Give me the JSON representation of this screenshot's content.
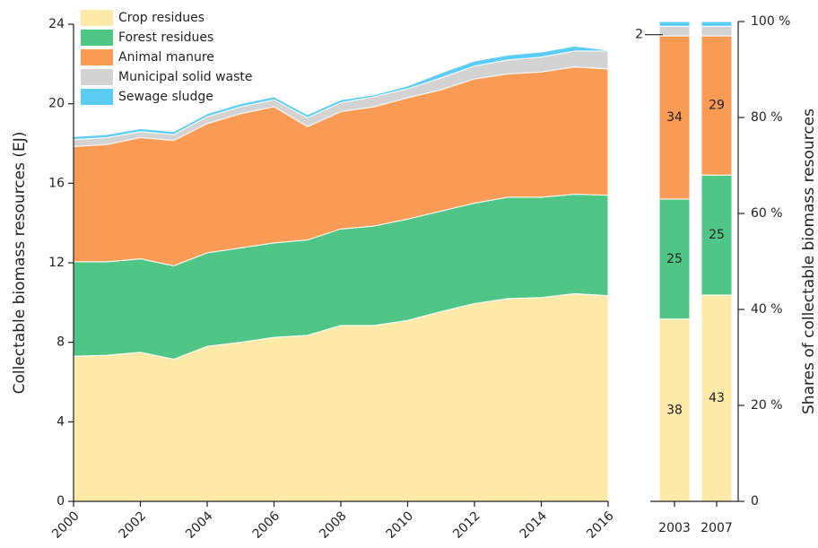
{
  "chart_data": [
    {
      "type": "area",
      "stacked": true,
      "y_label": "Collectable biomass resources (EJ)",
      "x": [
        2000,
        2001,
        2002,
        2003,
        2004,
        2005,
        2006,
        2007,
        2008,
        2009,
        2010,
        2011,
        2012,
        2013,
        2014,
        2015,
        2016
      ],
      "xlim": [
        2000,
        2016
      ],
      "xticks": [
        2000,
        2002,
        2004,
        2006,
        2008,
        2010,
        2012,
        2014,
        2016
      ],
      "ylim": [
        0,
        24
      ],
      "yticks": [
        0,
        4,
        8,
        12,
        16,
        20,
        24
      ],
      "legend": "upper left",
      "series": [
        {
          "name": "Crop residues",
          "color": "#fdeaa8",
          "values": [
            7.3,
            7.35,
            7.5,
            7.15,
            7.8,
            8.0,
            8.25,
            8.35,
            8.85,
            8.85,
            9.1,
            9.55,
            9.95,
            10.2,
            10.25,
            10.45,
            10.35
          ]
        },
        {
          "name": "Forest residues",
          "color": "#4fc685",
          "values": [
            4.75,
            4.7,
            4.7,
            4.7,
            4.7,
            4.75,
            4.75,
            4.8,
            4.85,
            5.0,
            5.1,
            5.05,
            5.05,
            5.1,
            5.05,
            5.0,
            5.05
          ]
        },
        {
          "name": "Animal manure",
          "color": "#f99b55",
          "values": [
            5.8,
            5.9,
            6.1,
            6.3,
            6.5,
            6.75,
            6.85,
            5.7,
            5.9,
            6.0,
            6.1,
            6.1,
            6.25,
            6.2,
            6.3,
            6.4,
            6.35
          ]
        },
        {
          "name": "Municipal solid waste",
          "color": "#d3d3d3",
          "values": [
            0.35,
            0.35,
            0.3,
            0.3,
            0.35,
            0.35,
            0.35,
            0.45,
            0.45,
            0.5,
            0.45,
            0.6,
            0.65,
            0.7,
            0.75,
            0.8,
            0.9
          ]
        },
        {
          "name": "Sewage sludge",
          "color": "#5bcdf5",
          "values": [
            0.15,
            0.15,
            0.15,
            0.15,
            0.15,
            0.15,
            0.15,
            0.15,
            0.15,
            0.1,
            0.15,
            0.25,
            0.25,
            0.25,
            0.25,
            0.25,
            0.05
          ]
        }
      ]
    },
    {
      "type": "bar",
      "stacked": true,
      "y_label": "Shares of collectable biomass resources",
      "categories": [
        "2003",
        "2007"
      ],
      "ylim": [
        0,
        100
      ],
      "yticks": [
        0,
        {
          "value": 20,
          "label": "20 %"
        },
        {
          "value": 40,
          "label": "40 %"
        },
        {
          "value": 60,
          "label": "60 %"
        },
        {
          "value": 80,
          "label": "80 %"
        },
        {
          "value": 100,
          "label": "100 %"
        }
      ],
      "series": [
        {
          "name": "Crop residues",
          "color": "#fdeaa8",
          "values": [
            38,
            43
          ],
          "value_labels": [
            "38",
            "43"
          ]
        },
        {
          "name": "Forest residues",
          "color": "#4fc685",
          "values": [
            25,
            25
          ],
          "value_labels": [
            "25",
            "25"
          ]
        },
        {
          "name": "Animal manure",
          "color": "#f99b55",
          "values": [
            34,
            29
          ],
          "value_labels": [
            "34",
            "29"
          ]
        },
        {
          "name": "Municipal solid waste",
          "color": "#d3d3d3",
          "values": [
            2,
            2
          ],
          "value_labels": [
            "2",
            null
          ]
        },
        {
          "name": "Sewage sludge",
          "color": "#5bcdf5",
          "values": [
            1,
            1
          ]
        }
      ]
    }
  ]
}
